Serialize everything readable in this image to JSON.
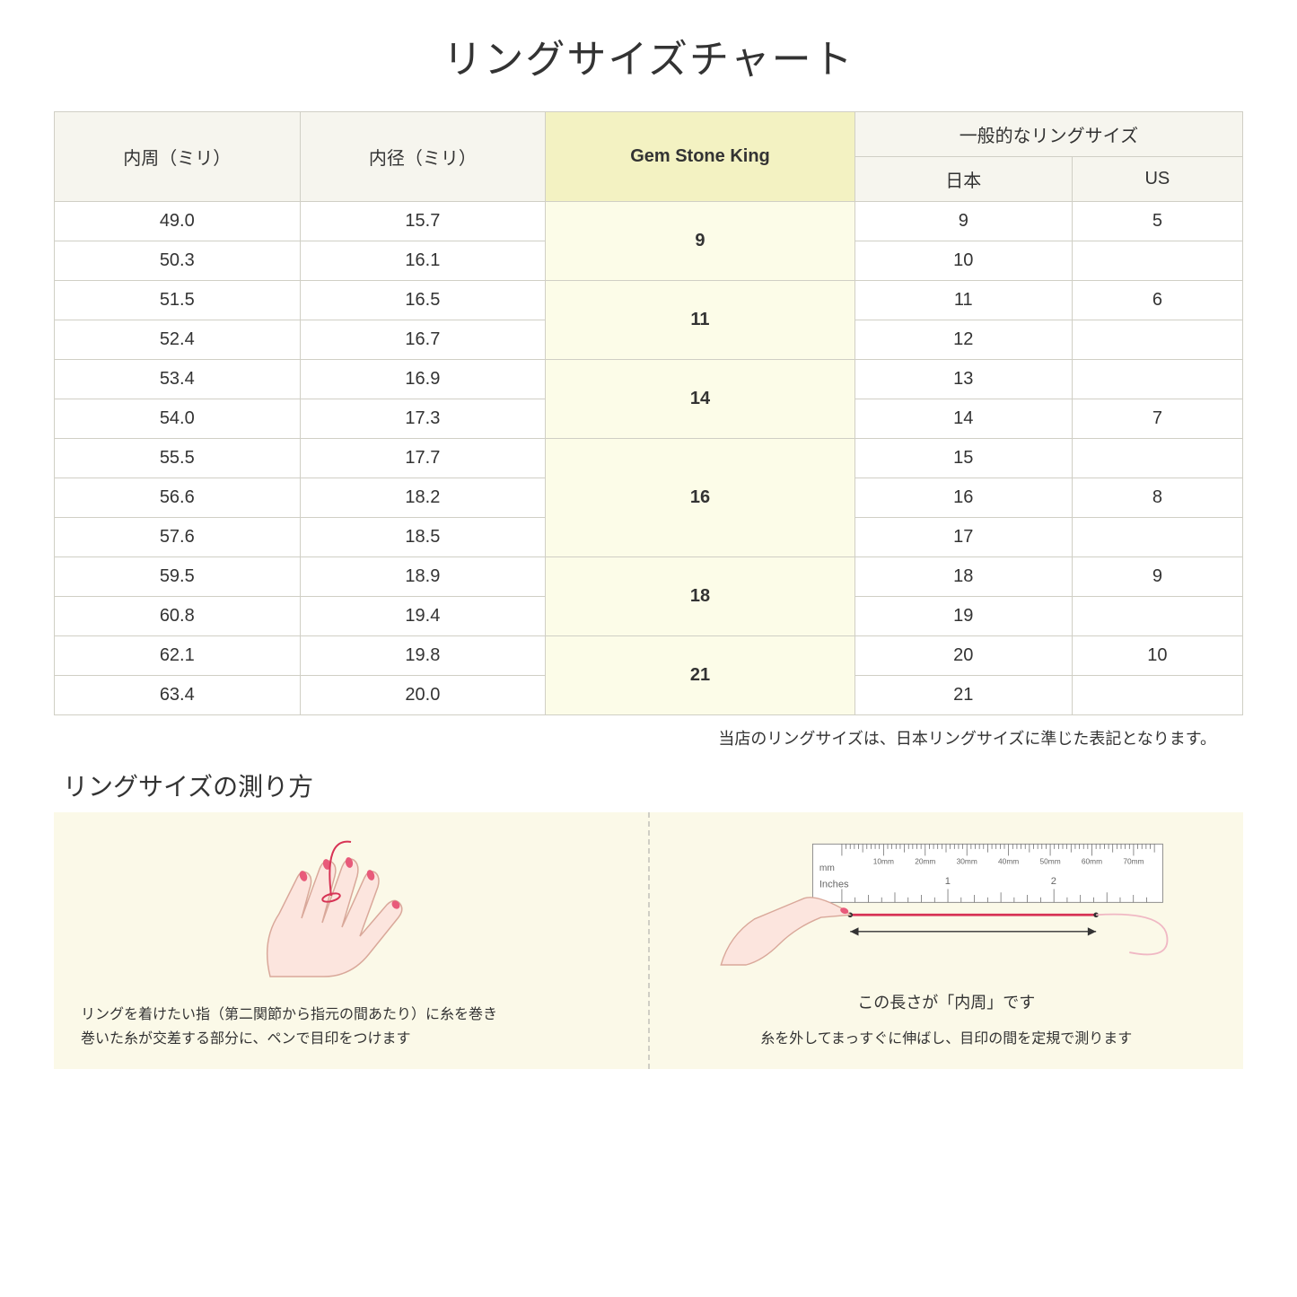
{
  "title": "リングサイズチャート",
  "table": {
    "headers": {
      "circumference": "内周（ミリ）",
      "diameter": "内径（ミリ）",
      "gsk": "Gem Stone King",
      "general": "一般的なリングサイズ",
      "japan": "日本",
      "us": "US"
    },
    "groups": [
      {
        "gsk": "9",
        "rows": [
          {
            "c": "49.0",
            "d": "15.7",
            "jp": "9",
            "us": "5"
          },
          {
            "c": "50.3",
            "d": "16.1",
            "jp": "10",
            "us": ""
          }
        ]
      },
      {
        "gsk": "11",
        "rows": [
          {
            "c": "51.5",
            "d": "16.5",
            "jp": "11",
            "us": "6"
          },
          {
            "c": "52.4",
            "d": "16.7",
            "jp": "12",
            "us": ""
          }
        ]
      },
      {
        "gsk": "14",
        "rows": [
          {
            "c": "53.4",
            "d": "16.9",
            "jp": "13",
            "us": ""
          },
          {
            "c": "54.0",
            "d": "17.3",
            "jp": "14",
            "us": "7"
          }
        ]
      },
      {
        "gsk": "16",
        "rows": [
          {
            "c": "55.5",
            "d": "17.7",
            "jp": "15",
            "us": ""
          },
          {
            "c": "56.6",
            "d": "18.2",
            "jp": "16",
            "us": "8"
          },
          {
            "c": "57.6",
            "d": "18.5",
            "jp": "17",
            "us": ""
          }
        ]
      },
      {
        "gsk": "18",
        "rows": [
          {
            "c": "59.5",
            "d": "18.9",
            "jp": "18",
            "us": "9"
          },
          {
            "c": "60.8",
            "d": "19.4",
            "jp": "19",
            "us": ""
          }
        ]
      },
      {
        "gsk": "21",
        "rows": [
          {
            "c": "62.1",
            "d": "19.8",
            "jp": "20",
            "us": "10"
          },
          {
            "c": "63.4",
            "d": "20.0",
            "jp": "21",
            "us": ""
          }
        ]
      }
    ]
  },
  "note": "当店のリングサイズは、日本リングサイズに準じた表記となります。",
  "measure": {
    "title": "リングサイズの測り方",
    "left_text": "リングを着けたい指（第二関節から指元の間あたり）に糸を巻き\n巻いた糸が交差する部分に、ペンで目印をつけます",
    "right_label": "この長さが「内周」です",
    "right_text": "糸を外してまっすぐに伸ばし、目印の間を定規で測ります",
    "ruler_mm": "mm",
    "ruler_inches": "Inches",
    "ruler_marks": [
      "10mm",
      "20mm",
      "30mm",
      "40mm",
      "50mm",
      "60mm",
      "70mm"
    ],
    "inch_marks": [
      "1",
      "2"
    ]
  },
  "colors": {
    "header_bg": "#f6f5ee",
    "gsk_header_bg": "#f3f2c2",
    "gsk_cell_bg": "#fcfce8",
    "border": "#d0cfc5",
    "measure_bg": "#fbf9e8",
    "hand_fill": "#fce5de",
    "hand_stroke": "#d9a89a",
    "nail": "#e85a7a",
    "thread": "#d73355",
    "ruler_fill": "#ffffff",
    "ruler_stroke": "#888888",
    "arrow": "#333333"
  }
}
